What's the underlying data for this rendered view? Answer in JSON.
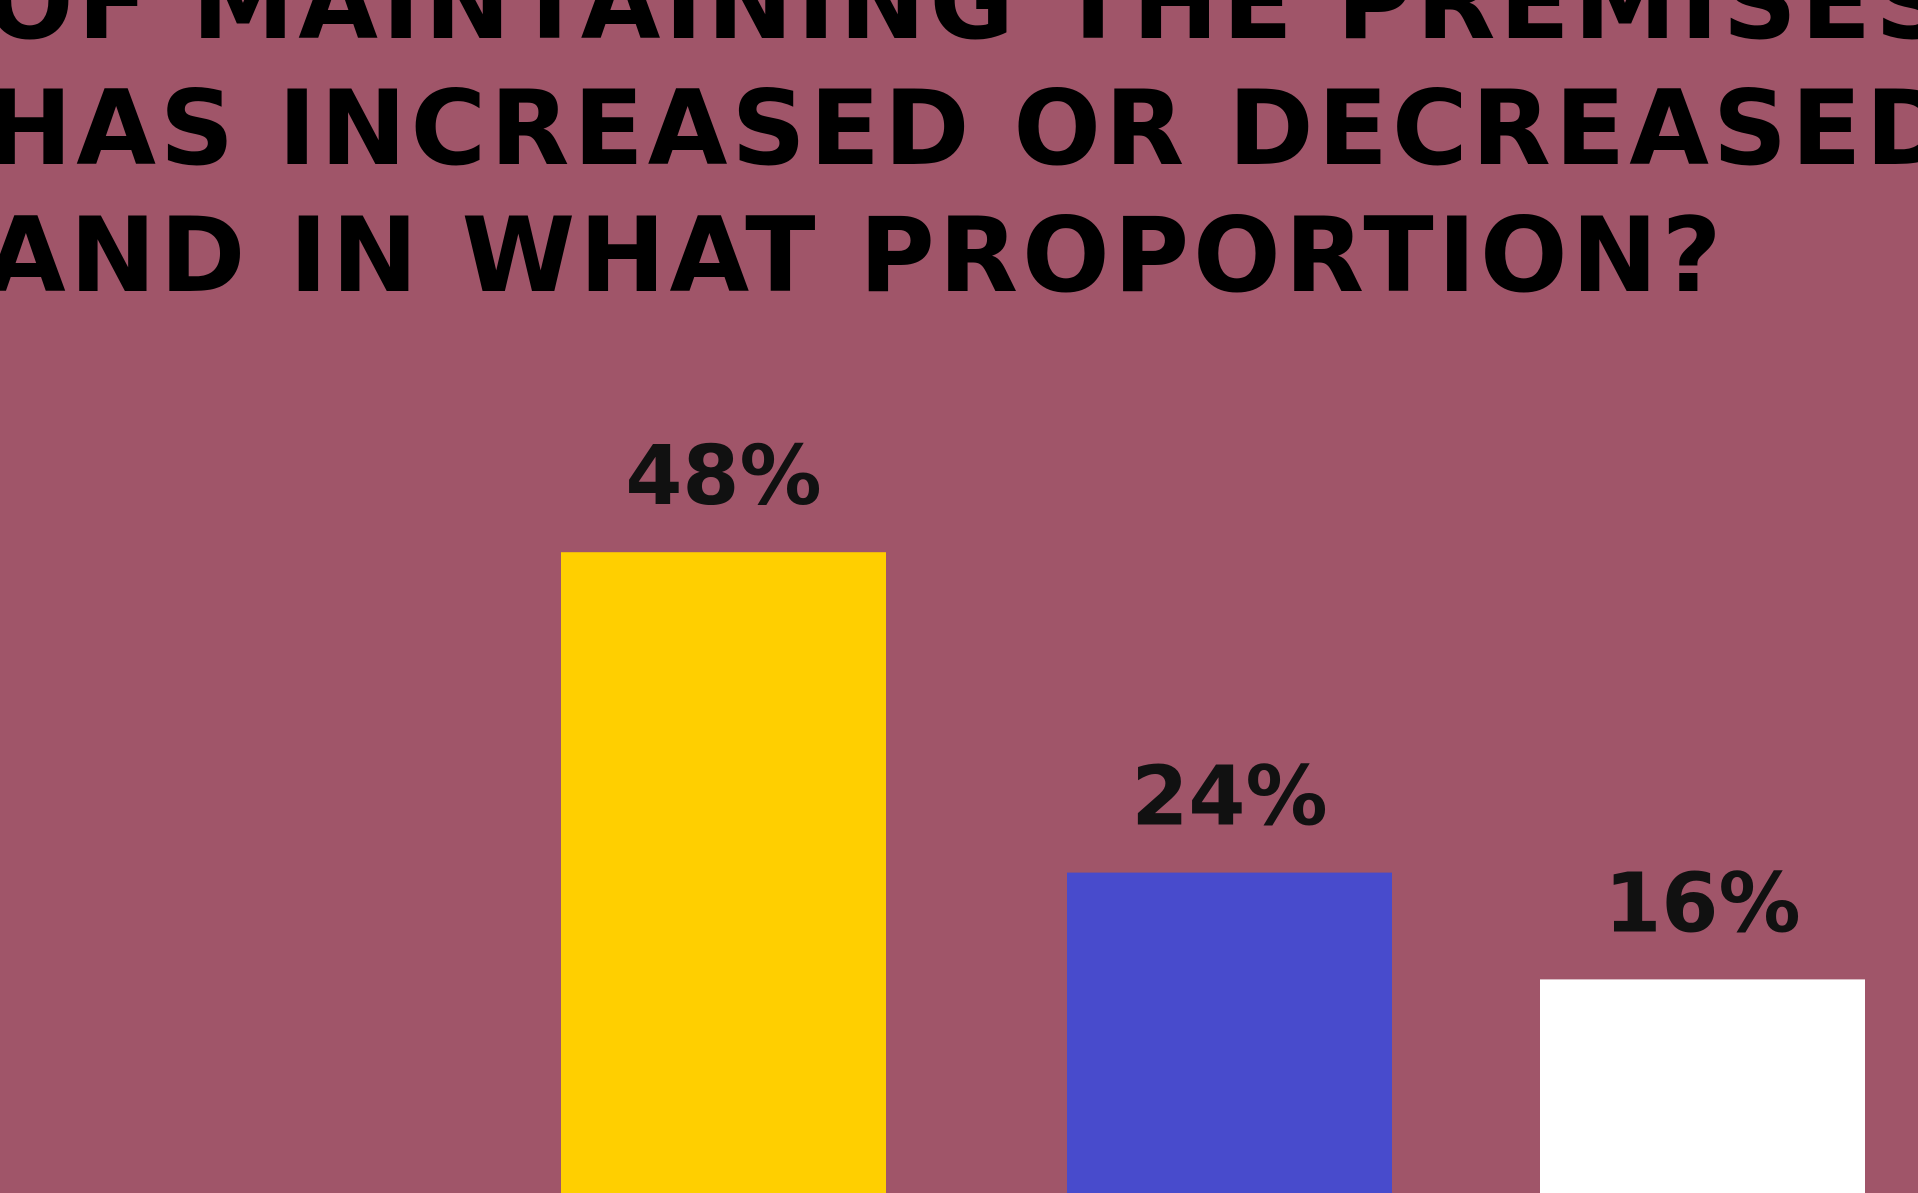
{
  "colors": {
    "background": "#A05569",
    "title": "#000000",
    "label": "#111111"
  },
  "title_lines": [
    "OF MAINTAINING THE PREMISES",
    "HAS INCREASED OR DECREASED",
    "AND IN WHAT PROPORTION?"
  ],
  "chart_data": {
    "type": "bar",
    "title": "OF MAINTAINING THE PREMISES HAS INCREASED OR DECREASED AND IN WHAT PROPORTION?",
    "categories": [
      "",
      "",
      ""
    ],
    "values": [
      48,
      24,
      16
    ],
    "value_labels": [
      "48%",
      "24%",
      "16%"
    ],
    "bar_colors": [
      "#FFCF00",
      "#484BCC",
      "#FFFFFF"
    ],
    "unit": "%",
    "xlabel": "",
    "ylabel": "",
    "grid": false,
    "axes_visible": false,
    "legend": "none"
  }
}
